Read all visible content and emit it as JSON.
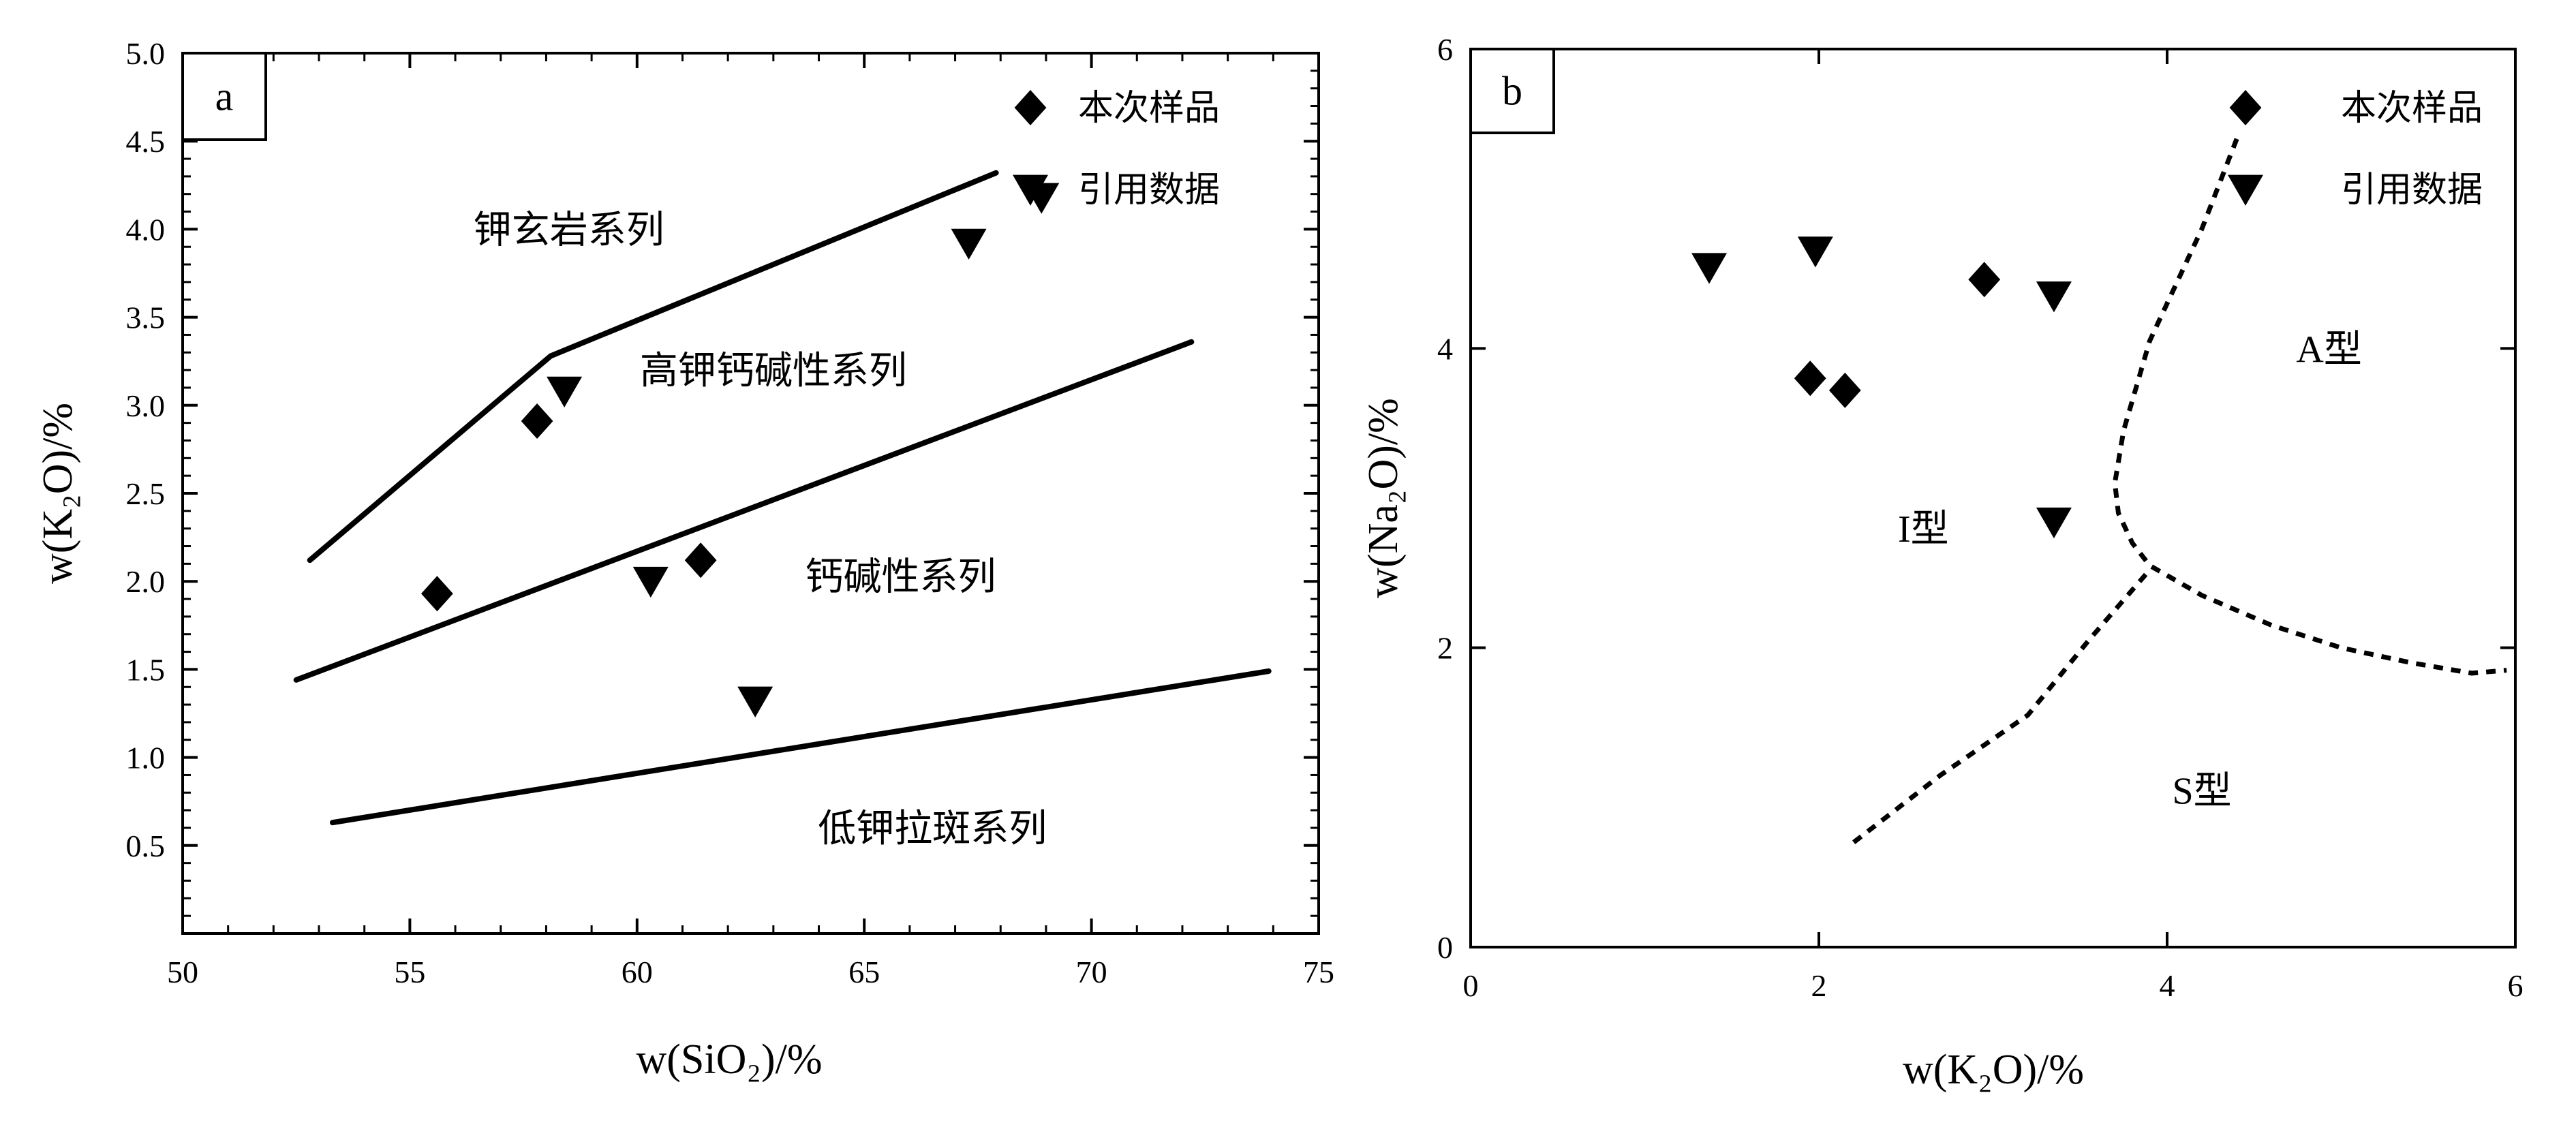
{
  "chart_data": [
    {
      "type": "scatter",
      "panel_label": "a",
      "xlabel": "w(SiO₂)/%",
      "ylabel": "w(K₂O)/%",
      "xlim": [
        50,
        75
      ],
      "ylim": [
        0,
        5
      ],
      "xticks": [
        50,
        55,
        60,
        65,
        70,
        75
      ],
      "yticks": [
        "0.5",
        "1.0",
        "1.5",
        "2.0",
        "2.5",
        "3.0",
        "3.5",
        "4.0",
        "4.5",
        "5.0"
      ],
      "grid": false,
      "legend_position": "top-right",
      "legend": [
        {
          "label": "本次样品",
          "marker": "diamond"
        },
        {
          "label": "引用数据",
          "marker": "triangle-down"
        }
      ],
      "series": [
        {
          "name": "本次样品",
          "marker": "diamond",
          "x": [
            55.6,
            57.8,
            61.4
          ],
          "y": [
            1.93,
            2.91,
            2.12
          ]
        },
        {
          "name": "引用数据",
          "marker": "triangle-down",
          "x": [
            58.4,
            60.3,
            62.6,
            67.3,
            68.9
          ],
          "y": [
            3.08,
            2.0,
            1.32,
            3.92,
            4.18
          ]
        }
      ],
      "boundary_lines": [
        {
          "style": "solid",
          "x": [
            52.8,
            58.1,
            67.9
          ],
          "y": [
            2.12,
            3.28,
            4.32
          ]
        },
        {
          "style": "solid",
          "x": [
            52.5,
            72.2
          ],
          "y": [
            1.44,
            3.36
          ]
        },
        {
          "style": "solid",
          "x": [
            53.3,
            73.9
          ],
          "y": [
            0.63,
            1.49
          ]
        }
      ],
      "annotations": [
        {
          "text": "钾玄岩系列",
          "x": 58.5,
          "y": 4.0
        },
        {
          "text": "高钾钙碱性系列",
          "x": 63.0,
          "y": 3.2
        },
        {
          "text": "钙碱性系列",
          "x": 65.8,
          "y": 2.03
        },
        {
          "text": "低钾拉斑系列",
          "x": 66.5,
          "y": 0.6
        }
      ]
    },
    {
      "type": "scatter",
      "panel_label": "b",
      "xlabel": "w(K₂O)/%",
      "ylabel": "w(Na₂O)/%",
      "xlim": [
        0,
        6
      ],
      "ylim": [
        0,
        6
      ],
      "xticks": [
        0,
        2,
        4,
        6
      ],
      "yticks": [
        0,
        2,
        4,
        6
      ],
      "grid": false,
      "legend_position": "top-right",
      "legend": [
        {
          "label": "本次样品",
          "marker": "diamond"
        },
        {
          "label": "引用数据",
          "marker": "triangle-down"
        }
      ],
      "series": [
        {
          "name": "本次样品",
          "marker": "diamond",
          "x": [
            1.95,
            2.15,
            2.95
          ],
          "y": [
            3.8,
            3.72,
            4.46
          ]
        },
        {
          "name": "引用数据",
          "marker": "triangle-down",
          "x": [
            1.37,
            1.98,
            3.35,
            3.35
          ],
          "y": [
            4.54,
            4.65,
            4.35,
            2.84
          ]
        }
      ],
      "boundary_lines": [
        {
          "style": "dashed",
          "x": [
            4.4,
            4.2,
            3.9,
            3.75,
            3.7,
            3.72,
            3.8,
            3.9,
            4.2,
            4.6,
            5.0,
            5.4,
            5.75,
            5.95
          ],
          "y": [
            5.4,
            4.8,
            4.05,
            3.45,
            3.1,
            2.9,
            2.7,
            2.55,
            2.35,
            2.15,
            2.0,
            1.9,
            1.83,
            1.85
          ]
        },
        {
          "style": "dashed",
          "x": [
            2.2,
            2.7,
            3.2,
            3.55,
            3.9
          ],
          "y": [
            0.7,
            1.15,
            1.55,
            2.05,
            2.52
          ]
        }
      ],
      "annotations": [
        {
          "text": "A型",
          "x": 4.93,
          "y": 4.0
        },
        {
          "text": "I型",
          "x": 2.6,
          "y": 2.8
        },
        {
          "text": "S型",
          "x": 4.2,
          "y": 1.05
        }
      ]
    }
  ]
}
